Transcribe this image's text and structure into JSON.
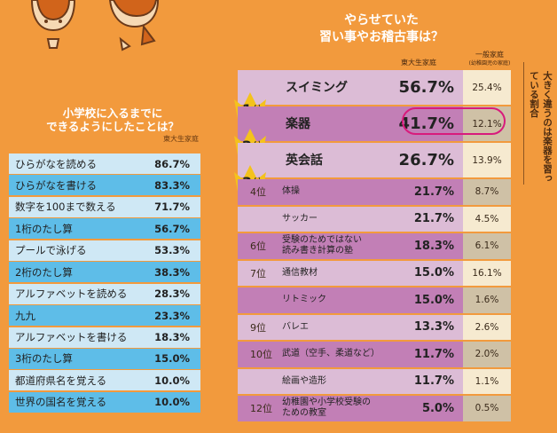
{
  "left": {
    "title_line1": "小学校に入るまでに",
    "title_line2": "できるようにしたことは？",
    "subtitle": "東大生家庭"
  },
  "right": {
    "title_line1": "やらせていた",
    "title_line2": "習い事やお稽古事は？",
    "header_main": "東大生家庭",
    "header_general": "一般家庭",
    "header_general_sub": "(幼稚園児の家庭)",
    "side_note": "大きく違うのは楽器を習っている割合"
  },
  "colors": {
    "background": "#f29a3d",
    "left_light": "#cfe8f5",
    "left_dark": "#5ebde8",
    "right_light": "#dcbcd6",
    "right_dark": "#c27fb6",
    "general_light": "#f6ead0",
    "general_dark": "#cfc1a6",
    "highlight": "#d81b7c",
    "crown": "#f4c21c"
  },
  "chart_data": [
    {
      "type": "table",
      "title": "小学校に入るまでにできるようにしたことは？",
      "columns": [
        "東大生家庭"
      ],
      "rows": [
        {
          "label": "ひらがなを読める",
          "value": "86.7%"
        },
        {
          "label": "ひらがなを書ける",
          "value": "83.3%"
        },
        {
          "label": "数字を100まで数える",
          "value": "71.7%"
        },
        {
          "label": "1桁のたし算",
          "value": "56.7%"
        },
        {
          "label": "プールで泳げる",
          "value": "53.3%"
        },
        {
          "label": "2桁のたし算",
          "value": "38.3%"
        },
        {
          "label": "アルファベットを読める",
          "value": "28.3%"
        },
        {
          "label": "九九",
          "value": "23.3%"
        },
        {
          "label": "アルファベットを書ける",
          "value": "18.3%"
        },
        {
          "label": "3桁のたし算",
          "value": "15.0%"
        },
        {
          "label": "都道府県名を覚える",
          "value": "10.0%"
        },
        {
          "label": "世界の国名を覚える",
          "value": "10.0%"
        }
      ]
    },
    {
      "type": "table",
      "title": "やらせていた習い事やお稽古事は？",
      "columns": [
        "東大生家庭",
        "一般家庭"
      ],
      "rows": [
        {
          "rank": "1",
          "rank_suffix": "位",
          "label": "スイミング",
          "value": "56.7%",
          "general": "25.4%",
          "top": true
        },
        {
          "rank": "2",
          "rank_suffix": "位",
          "label": "楽器",
          "value": "41.7%",
          "general": "12.1%",
          "top": true
        },
        {
          "rank": "3",
          "rank_suffix": "位",
          "label": "英会話",
          "value": "26.7%",
          "general": "13.9%",
          "top": true
        },
        {
          "rank": "4位",
          "label": "体操",
          "value": "21.7%",
          "general": "8.7%"
        },
        {
          "rank": "",
          "label": "サッカー",
          "value": "21.7%",
          "general": "4.5%"
        },
        {
          "rank": "6位",
          "label": "受験のためではない\n読み書き計算の塾",
          "value": "18.3%",
          "general": "6.1%"
        },
        {
          "rank": "7位",
          "label": "通信教材",
          "value": "15.0%",
          "general": "16.1%"
        },
        {
          "rank": "",
          "label": "リトミック",
          "value": "15.0%",
          "general": "1.6%"
        },
        {
          "rank": "9位",
          "label": "バレエ",
          "value": "13.3%",
          "general": "2.6%"
        },
        {
          "rank": "10位",
          "label": "武道（空手、柔道など）",
          "value": "11.7%",
          "general": "2.0%"
        },
        {
          "rank": "",
          "label": "絵画や造形",
          "value": "11.7%",
          "general": "1.1%"
        },
        {
          "rank": "12位",
          "label": "幼稚園や小学校受験の\nための教室",
          "value": "5.0%",
          "general": "0.5%"
        }
      ]
    }
  ]
}
